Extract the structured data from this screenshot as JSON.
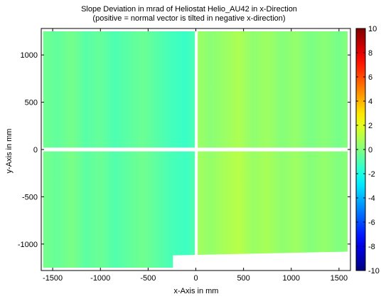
{
  "chart_data": {
    "type": "heatmap",
    "title": "Slope Deviation in mrad of Heliostat Helio_AU42 in x-Direction",
    "subtitle": "(positive = normal vector is tilted in negative x-direction)",
    "xlabel": "x-Axis in mm",
    "ylabel": "y-Axis in mm",
    "xlim": [
      -1620,
      1620
    ],
    "ylim": [
      -1280,
      1280
    ],
    "xticks": [
      -1500,
      -1000,
      -500,
      0,
      500,
      1000,
      1500
    ],
    "xtick_labels": [
      "-1500",
      "-1000",
      "-500",
      "0",
      "500",
      "1000",
      "1500"
    ],
    "yticks": [
      -1000,
      -500,
      0,
      500,
      1000
    ],
    "ytick_labels": [
      "-1000",
      "-500",
      "0",
      "500",
      "1000"
    ],
    "colorbar": {
      "colormap": "jet",
      "min": -10,
      "max": 10,
      "ticks": [
        -10,
        -8,
        -6,
        -4,
        -2,
        0,
        2,
        4,
        6,
        8,
        10
      ],
      "tick_labels": [
        "-10",
        "-8",
        "-6",
        "-4",
        "-2",
        "0",
        "2",
        "4",
        "6",
        "8",
        "10"
      ]
    },
    "grid": false,
    "facets": [
      {
        "name": "top-left",
        "x_range": [
          -1600,
          -10
        ],
        "y_range": [
          20,
          1250
        ],
        "vertical_bands": [
          {
            "x": -1600,
            "value": -0.3
          },
          {
            "x": -1450,
            "value": -0.6
          },
          {
            "x": -1300,
            "value": -0.2
          },
          {
            "x": -1150,
            "value": -0.8
          },
          {
            "x": -1000,
            "value": -0.5
          },
          {
            "x": -850,
            "value": -1.0
          },
          {
            "x": -700,
            "value": -0.7
          },
          {
            "x": -550,
            "value": -0.4
          },
          {
            "x": -400,
            "value": -0.8
          },
          {
            "x": -250,
            "value": -1.2
          },
          {
            "x": -100,
            "value": -1.4
          },
          {
            "x": -10,
            "value": -1.0
          }
        ]
      },
      {
        "name": "top-right",
        "x_range": [
          20,
          1590
        ],
        "y_range": [
          20,
          1250
        ],
        "vertical_bands": [
          {
            "x": 20,
            "value": 0.6
          },
          {
            "x": 150,
            "value": 0.2
          },
          {
            "x": 300,
            "value": 0.5
          },
          {
            "x": 450,
            "value": 0.9
          },
          {
            "x": 600,
            "value": 0.3
          },
          {
            "x": 750,
            "value": 0.6
          },
          {
            "x": 900,
            "value": 0.1
          },
          {
            "x": 1050,
            "value": 0.4
          },
          {
            "x": 1200,
            "value": -0.1
          },
          {
            "x": 1350,
            "value": 0.2
          },
          {
            "x": 1500,
            "value": -0.2
          },
          {
            "x": 1590,
            "value": 0.1
          }
        ]
      },
      {
        "name": "bottom-left",
        "x_range": [
          -1600,
          -10
        ],
        "y_range": [
          -1250,
          -20
        ],
        "vertical_bands": [
          {
            "x": -1600,
            "value": -0.2
          },
          {
            "x": -1450,
            "value": -0.5
          },
          {
            "x": -1300,
            "value": -0.1
          },
          {
            "x": -1150,
            "value": -0.7
          },
          {
            "x": -1000,
            "value": -0.4
          },
          {
            "x": -850,
            "value": -0.9
          },
          {
            "x": -700,
            "value": -0.6
          },
          {
            "x": -550,
            "value": -0.3
          },
          {
            "x": -400,
            "value": -0.7
          },
          {
            "x": -250,
            "value": -1.1
          },
          {
            "x": -100,
            "value": -1.3
          },
          {
            "x": -10,
            "value": -0.9
          }
        ]
      },
      {
        "name": "bottom-right",
        "x_range": [
          20,
          1590
        ],
        "y_range": [
          -1250,
          -20
        ],
        "vertical_bands": [
          {
            "x": 20,
            "value": 0.7
          },
          {
            "x": 150,
            "value": 0.4
          },
          {
            "x": 300,
            "value": 0.8
          },
          {
            "x": 450,
            "value": 1.1
          },
          {
            "x": 600,
            "value": 0.5
          },
          {
            "x": 750,
            "value": 0.8
          },
          {
            "x": 900,
            "value": 0.3
          },
          {
            "x": 1050,
            "value": 0.6
          },
          {
            "x": 1200,
            "value": 0.1
          },
          {
            "x": 1350,
            "value": 0.4
          },
          {
            "x": 1500,
            "value": 0.0
          },
          {
            "x": 1590,
            "value": 0.2
          }
        ]
      }
    ],
    "lower_boundary": [
      {
        "x": -1600,
        "y": -1250
      },
      {
        "x": -240,
        "y": -1250
      },
      {
        "x": -240,
        "y": -1120
      },
      {
        "x": 1590,
        "y": -1080
      }
    ]
  }
}
